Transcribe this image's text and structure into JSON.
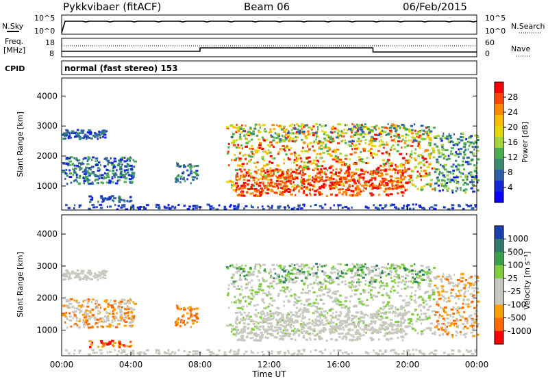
{
  "header": {
    "station": "Pykkvibaer (fitACF)",
    "beam": "Beam 06",
    "date": "06/Feb/2015"
  },
  "status_panels": {
    "nsky_label": "N.Sky",
    "nsky_ticks": [
      "10^5",
      "10^0"
    ],
    "nsearch_ticks": [
      "10^5",
      "10^0"
    ],
    "nsearch_label": "N.Search",
    "freq_label": [
      "Freq.",
      "[MHz]"
    ],
    "freq_ticks": [
      "18",
      "8"
    ],
    "nave_ticks": [
      "60",
      "0"
    ],
    "nave_label": "Nave",
    "cpid_label": "CPID",
    "cpid_text": "normal (fast stereo) 153"
  },
  "chart_data": [
    {
      "type": "heatmap",
      "name": "power-panel",
      "ylabel": "Slant Range [km]",
      "yticks": [
        1000,
        2000,
        3000,
        4000
      ],
      "ylim": [
        200,
        4600
      ],
      "xticks": [
        "00:00",
        "04:00",
        "08:00",
        "12:00",
        "16:00",
        "20:00",
        "00:00"
      ],
      "xlim_hours": [
        0,
        24
      ],
      "colorbar": {
        "label": "Power [dB]",
        "ticks": [
          "28",
          "24",
          "20",
          "16",
          "12",
          "8",
          "4"
        ],
        "colors": [
          "#ff0000",
          "#ff4400",
          "#ff8800",
          "#ffbb00",
          "#e6d800",
          "#a6d43c",
          "#4caf50",
          "#3a8a6e",
          "#2e5fa8",
          "#1428d8",
          "#0a00ff"
        ]
      }
    },
    {
      "type": "heatmap",
      "name": "velocity-panel",
      "ylabel": "Slant Range [km]",
      "yticks": [
        1000,
        2000,
        3000,
        4000
      ],
      "ylim": [
        200,
        4600
      ],
      "xticks": [
        "00:00",
        "04:00",
        "08:00",
        "12:00",
        "16:00",
        "20:00",
        "00:00"
      ],
      "xlim_hours": [
        0,
        24
      ],
      "xlabel": "Time UT",
      "colorbar": {
        "label": "Velocity [m s⁻¹]",
        "ticks": [
          "1000",
          "500",
          "100",
          "25",
          "-25",
          "-100",
          "-500",
          "-1000"
        ],
        "colors": [
          "#1c3fb0",
          "#2f7a6a",
          "#3aa04a",
          "#7fcf3c",
          "#c8c8c0",
          "#c8c8c0",
          "#ffa000",
          "#ff6a00",
          "#ff0000"
        ]
      }
    }
  ]
}
